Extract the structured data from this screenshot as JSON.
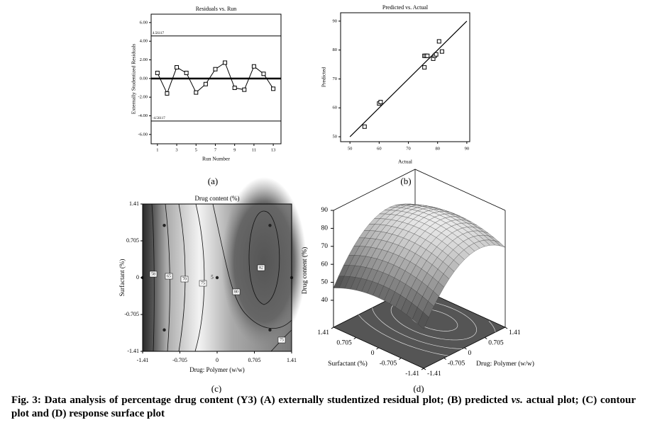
{
  "chart_data": [
    {
      "type": "line",
      "title": "Residuals vs. Run",
      "xlabel": "Run Number",
      "ylabel": "Externally Studentized Residuals",
      "x": [
        1,
        2,
        3,
        4,
        5,
        6,
        7,
        8,
        9,
        10,
        11,
        12,
        13
      ],
      "values": [
        0.6,
        -1.6,
        1.2,
        0.6,
        -1.5,
        -0.6,
        1.0,
        1.7,
        -1.0,
        -1.2,
        1.3,
        0.5,
        -1.1
      ],
      "color": "#000000",
      "xlim": [
        0.35,
        13.8
      ],
      "ylim": [
        -7,
        6.9
      ],
      "xticks": [
        1,
        3,
        5,
        7,
        9,
        11,
        13
      ],
      "yticks": [
        {
          "value": -6,
          "label": "-6.00"
        },
        {
          "value": -4,
          "label": "-4.00"
        },
        {
          "value": -2,
          "label": "-2.00"
        },
        {
          "value": 0,
          "label": "0.00"
        },
        {
          "value": 2,
          "label": "2.00"
        },
        {
          "value": 4,
          "label": "4.00"
        },
        {
          "value": 6,
          "label": "6.00"
        }
      ],
      "reference_lines": [
        {
          "value": 4.56117,
          "label": "4.56117"
        },
        {
          "value": -4.56117,
          "label": "-4.56117"
        }
      ],
      "zero_line": true,
      "panel_label": "(a)"
    },
    {
      "type": "scatter",
      "title": "Predicted vs. Actual",
      "xlabel": "Actual",
      "ylabel": "Predicted",
      "x": [
        55,
        60,
        60.5,
        75.5,
        75.5,
        76,
        76.5,
        78.5,
        79,
        79.5,
        80.5,
        81.5
      ],
      "values": [
        53.5,
        61.5,
        62,
        74,
        78,
        78,
        78,
        77,
        78,
        78.5,
        83,
        79.5
      ],
      "color": "#000000",
      "xlim": [
        46.8,
        91
      ],
      "ylim": [
        48.3,
        92.9
      ],
      "xticks": [
        50,
        60,
        70,
        80,
        90
      ],
      "yticks": [
        50,
        60,
        70,
        80,
        90
      ],
      "fit_line": {
        "x": [
          50,
          90
        ],
        "y": [
          50,
          90
        ]
      },
      "panel_label": "(b)"
    },
    {
      "type": "contour",
      "title": "Drug content (%)",
      "xlabel": "Drug: Polymer (w/w)",
      "ylabel": "Surfactant (%)",
      "xlim": [
        -1.41,
        1.41
      ],
      "ylim": [
        -1.41,
        1.41
      ],
      "xticks": [
        -1.41,
        -0.705,
        0,
        0.705,
        1.41
      ],
      "yticks": [
        -1.41,
        -0.705,
        0,
        0.705,
        1.41
      ],
      "contour_labels": [
        58,
        65,
        70,
        75,
        80,
        82,
        75
      ],
      "x": [
        -1,
        1,
        -1.41,
        0,
        1.41,
        -1,
        1
      ],
      "y": [
        1,
        1,
        0,
        0,
        0,
        -1,
        -1
      ],
      "center_points": 5,
      "panel_label": "(c)"
    },
    {
      "type": "surface",
      "zlabel": "Drug content (%)",
      "xlabel": "Drug: Polymer (w/w)",
      "ylabel": "Surfactant (%)",
      "xlim": [
        -1.41,
        1.41
      ],
      "ylim": [
        -1.41,
        1.41
      ],
      "zlim": [
        25,
        90
      ],
      "xticks": [
        -1.41,
        -0.705,
        0,
        0.705,
        1.41
      ],
      "yticks": [
        -1.41,
        -0.705,
        0,
        0.705,
        1.41
      ],
      "zticks": [
        40,
        50,
        60,
        70,
        80,
        90
      ],
      "panel_label": "(d)"
    }
  ],
  "caption": [
    "Fig. 3: Data analysis of percentage drug content (Y3) (A) externally studentized residual plot; (B) predicted ",
    "vs.",
    " actual plot; (C) contour plot and (D) response surface plot"
  ]
}
